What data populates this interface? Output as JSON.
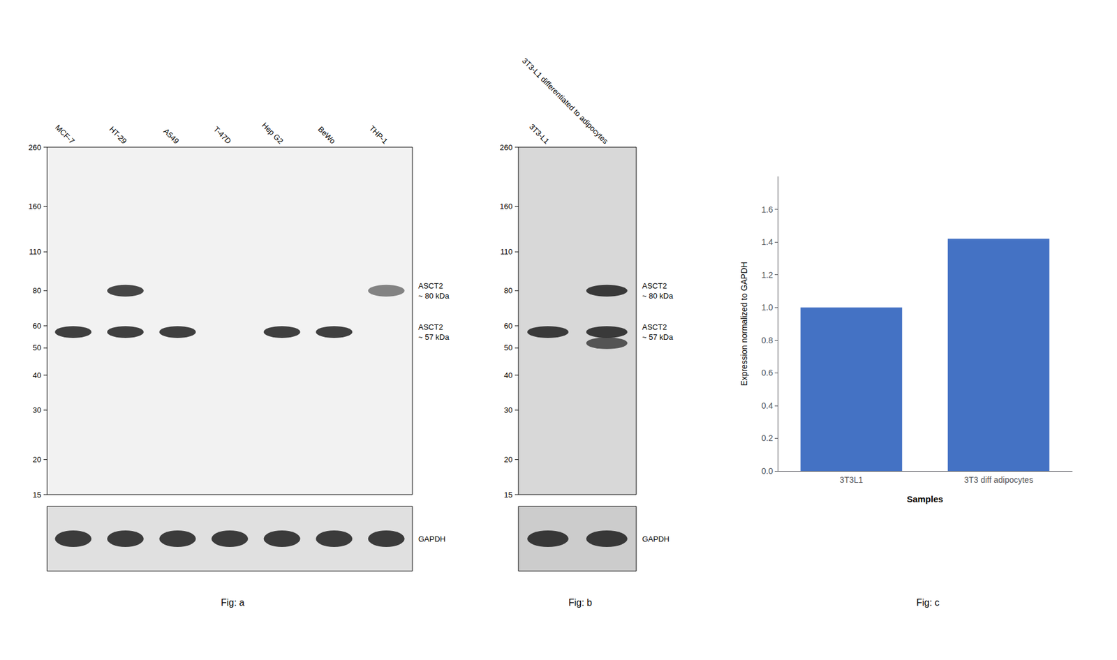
{
  "chart_data": [
    {
      "type": "blot",
      "title": "Fig: a",
      "categories": [
        "MCF-7",
        "HT-29",
        "A549",
        "T-47D",
        "Hep G2",
        "BeWo",
        "THP-1"
      ],
      "log": "y",
      "ylim": [
        15,
        260
      ],
      "yticks": [
        260,
        160,
        110,
        80,
        60,
        50,
        40,
        30,
        20,
        15
      ],
      "grid": false,
      "series": [
        {
          "name": "ASCT2\n~ 80 kDa",
          "values": [
            null,
            80,
            null,
            null,
            null,
            null,
            80
          ],
          "colors": [
            null,
            "#1a1a1a",
            null,
            null,
            null,
            null,
            "#666666"
          ]
        },
        {
          "name": "ASCT2\n~ 57 kDa",
          "values": [
            57,
            57,
            57,
            null,
            57,
            57,
            null
          ],
          "color": "#111111"
        },
        {
          "name": "GAPDH",
          "type": "control",
          "bands": [
            true,
            true,
            true,
            true,
            true,
            true,
            true
          ],
          "color": "#111111"
        }
      ]
    },
    {
      "type": "blot",
      "title": "Fig: b",
      "categories": [
        "3T3-L1",
        "3T3-L1 differentiated to adipocytes"
      ],
      "log": "y",
      "ylim": [
        15,
        260
      ],
      "yticks": [
        260,
        160,
        110,
        80,
        60,
        50,
        40,
        30,
        20,
        15
      ],
      "grid": false,
      "series": [
        {
          "name": "ASCT2\n~ 80 kDa",
          "values": [
            null,
            80
          ],
          "color": "#111111"
        },
        {
          "name": "ASCT2\n~ 57 kDa",
          "values": [
            57,
            57
          ],
          "color": "#111111"
        },
        {
          "values": [
            null,
            52
          ],
          "color": "#333333"
        },
        {
          "name": "GAPDH",
          "type": "control",
          "bands": [
            true,
            true
          ],
          "color": "#111111"
        }
      ]
    },
    {
      "type": "bar",
      "title": "Fig: c",
      "categories": [
        "3T3L1",
        "3T3 diff adipocytes"
      ],
      "values": [
        1.0,
        1.42
      ],
      "color": "#4472C4",
      "xlabel": "Samples",
      "ylabel": "Expression normalized to GAPDH",
      "ylim": [
        0,
        1.8
      ],
      "yticks": [
        {
          "value": 0,
          "label": "0.0"
        },
        0.2,
        0.4,
        0.6,
        0.8,
        {
          "value": 1.0,
          "label": "1.0"
        },
        1.2,
        1.4,
        1.6
      ],
      "grid": false
    }
  ]
}
